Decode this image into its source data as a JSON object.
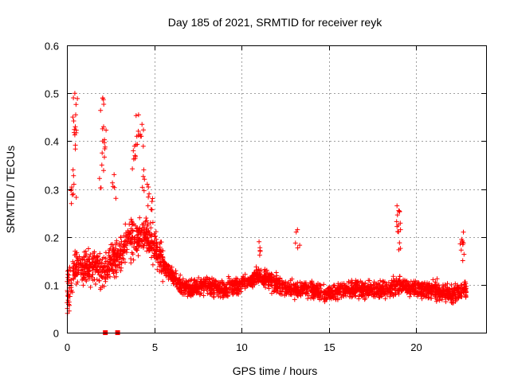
{
  "chart_data": {
    "type": "scatter",
    "title": "Day 185 of 2021, SRMTID for receiver reyk",
    "xlabel": "GPS time / hours",
    "ylabel": "SRMTID / TECUs",
    "xlim": [
      0,
      24
    ],
    "ylim": [
      0,
      0.6
    ],
    "xticks": [
      "0",
      "5",
      "10",
      "15",
      "20"
    ],
    "xtick_values": [
      0,
      5,
      10,
      15,
      20
    ],
    "yticks": [
      "0",
      "0.1",
      "0.2",
      "0.3",
      "0.4",
      "0.5",
      "0.6"
    ],
    "ytick_values": [
      0,
      0.1,
      0.2,
      0.3,
      0.4,
      0.5,
      0.6
    ],
    "grid": true,
    "marker": "+",
    "series": [
      {
        "name": "SRMTID",
        "color": "#ff0000",
        "trend": [
          [
            0.0,
            0.09
          ],
          [
            0.3,
            0.12
          ],
          [
            0.5,
            0.14
          ],
          [
            1.0,
            0.13
          ],
          [
            1.5,
            0.14
          ],
          [
            2.0,
            0.13
          ],
          [
            2.5,
            0.15
          ],
          [
            3.0,
            0.16
          ],
          [
            3.5,
            0.19
          ],
          [
            4.0,
            0.2
          ],
          [
            4.5,
            0.21
          ],
          [
            5.0,
            0.18
          ],
          [
            5.5,
            0.14
          ],
          [
            6.0,
            0.12
          ],
          [
            6.5,
            0.1
          ],
          [
            7.0,
            0.09
          ],
          [
            8.0,
            0.1
          ],
          [
            9.0,
            0.09
          ],
          [
            10.0,
            0.1
          ],
          [
            11.0,
            0.12
          ],
          [
            12.0,
            0.1
          ],
          [
            13.0,
            0.09
          ],
          [
            14.0,
            0.09
          ],
          [
            15.0,
            0.08
          ],
          [
            16.0,
            0.09
          ],
          [
            17.0,
            0.09
          ],
          [
            18.0,
            0.09
          ],
          [
            19.0,
            0.1
          ],
          [
            20.0,
            0.09
          ],
          [
            21.0,
            0.09
          ],
          [
            22.0,
            0.08
          ],
          [
            22.8,
            0.09
          ]
        ],
        "peaks": [
          [
            0.45,
            0.5
          ],
          [
            0.5,
            0.455
          ],
          [
            0.48,
            0.43
          ],
          [
            0.35,
            0.34
          ],
          [
            0.4,
            0.31
          ],
          [
            2.05,
            0.49
          ],
          [
            2.1,
            0.43
          ],
          [
            2.05,
            0.4
          ],
          [
            2.0,
            0.35
          ],
          [
            2.7,
            0.33
          ],
          [
            4.1,
            0.455
          ],
          [
            4.3,
            0.435
          ],
          [
            4.0,
            0.41
          ],
          [
            3.8,
            0.38
          ],
          [
            4.4,
            0.34
          ],
          [
            4.6,
            0.31
          ],
          [
            4.9,
            0.28
          ],
          [
            18.9,
            0.265
          ],
          [
            19.0,
            0.255
          ],
          [
            19.1,
            0.215
          ],
          [
            11.0,
            0.19
          ],
          [
            13.2,
            0.215
          ],
          [
            22.7,
            0.21
          ],
          [
            22.6,
            0.195
          ]
        ],
        "low_points": [
          [
            2.2,
            0.0
          ],
          [
            2.9,
            0.0
          ]
        ],
        "point_count": 2600,
        "x_range": [
          0,
          22.9
        ]
      }
    ]
  }
}
